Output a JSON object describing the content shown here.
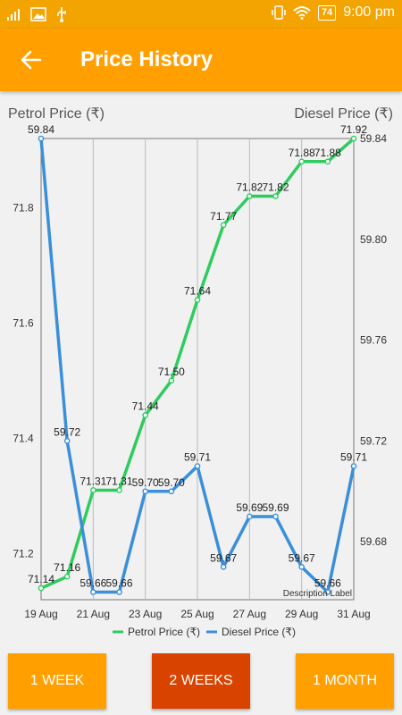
{
  "status_bar": {
    "battery": "74",
    "time": "9:00 pm"
  },
  "app_bar": {
    "title": "Price History"
  },
  "chart_titles": {
    "left": "Petrol Price (₹)",
    "right": "Diesel Price (₹)"
  },
  "chart_data": {
    "type": "line",
    "categories": [
      "19 Aug",
      "20 Aug",
      "21 Aug",
      "22 Aug",
      "23 Aug",
      "24 Aug",
      "25 Aug",
      "26 Aug",
      "27 Aug",
      "28 Aug",
      "29 Aug",
      "30 Aug",
      "31 Aug"
    ],
    "xtick_labels": [
      "19 Aug",
      "21 Aug",
      "23 Aug",
      "25 Aug",
      "27 Aug",
      "29 Aug",
      "31 Aug"
    ],
    "series": [
      {
        "name": "Petrol Price (₹)",
        "axis": "left",
        "color": "#2ecc5e",
        "values": [
          71.14,
          71.16,
          71.31,
          71.31,
          71.44,
          71.5,
          71.64,
          71.77,
          71.82,
          71.82,
          71.88,
          71.88,
          71.92
        ]
      },
      {
        "name": "Diesel Price (₹)",
        "axis": "right",
        "color": "#3a8fd8",
        "values": [
          59.84,
          59.72,
          59.66,
          59.66,
          59.7,
          59.7,
          59.71,
          59.67,
          59.69,
          59.69,
          59.67,
          59.66,
          59.71
        ]
      }
    ],
    "left_axis": {
      "ticks": [
        "71.2",
        "71.4",
        "71.6",
        "71.8"
      ],
      "ylim": [
        71.12,
        71.92
      ]
    },
    "right_axis": {
      "ticks": [
        "59.68",
        "59.72",
        "59.76",
        "59.80",
        "59.84"
      ],
      "ylim": [
        59.657,
        59.84
      ]
    },
    "description_label": "Description Label",
    "legend_placement": "bottom-center",
    "grid": "vertical"
  },
  "buttons": [
    {
      "label": "1 WEEK",
      "selected": false
    },
    {
      "label": "2 WEEKS",
      "selected": true
    },
    {
      "label": "1 MONTH",
      "selected": false
    }
  ]
}
